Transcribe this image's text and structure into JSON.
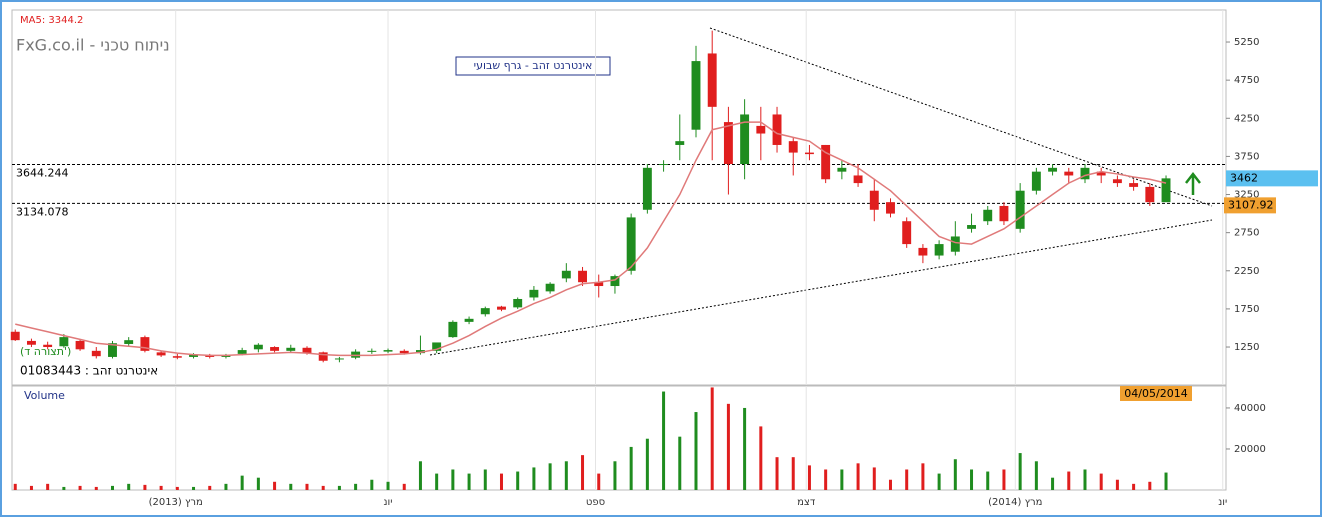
{
  "chart_data": {
    "type": "candlestick",
    "title": "FxG.co.il - ניתוח טכני",
    "subtitle": "אינטרנט זהב - גרף שבועי",
    "indicator_label": "MA5: 3344.2",
    "symbol_label": "01083443 : אינטרנט זהב",
    "pattern_label": "(תצורה ד')",
    "up_color": "#1f8c1f",
    "down_color": "#e01e1e",
    "ma_color": "#e07a7a",
    "open": [
      1450,
      1330,
      1280,
      1260,
      1330,
      1200,
      1120,
      1290,
      1380,
      1180,
      1130,
      1120,
      1140,
      1120,
      1160,
      1220,
      1250,
      1200,
      1240,
      1180,
      1090,
      1110,
      1190,
      1190,
      1200,
      1170,
      1200,
      1380,
      1580,
      1680,
      1780,
      1770,
      1900,
      1980,
      2150,
      2250,
      2100,
      2050,
      2250,
      3050,
      3650,
      3900,
      4100,
      5100,
      4200,
      3650,
      4150,
      4300,
      3950,
      3800,
      3900,
      3550,
      3500,
      3300,
      3150,
      2900,
      2550,
      2450,
      2500,
      2800,
      2900,
      3100,
      2800,
      3300,
      3550,
      3550,
      3450,
      3550,
      3450,
      3400,
      3350,
      3150
    ],
    "high": [
      1480,
      1360,
      1320,
      1420,
      1350,
      1250,
      1330,
      1380,
      1400,
      1200,
      1160,
      1170,
      1160,
      1160,
      1240,
      1300,
      1260,
      1280,
      1260,
      1190,
      1120,
      1220,
      1230,
      1230,
      1220,
      1400,
      1300,
      1600,
      1650,
      1780,
      1790,
      1900,
      2050,
      2100,
      2350,
      2300,
      2200,
      2200,
      3000,
      3650,
      3700,
      4300,
      5200,
      5400,
      4400,
      4500,
      4400,
      4400,
      4000,
      3900,
      3900,
      3700,
      3650,
      3450,
      3200,
      2950,
      2600,
      2650,
      2900,
      3000,
      3100,
      3150,
      3400,
      3600,
      3650,
      3600,
      3650,
      3600,
      3500,
      3450,
      3400,
      3500
    ],
    "low": [
      1330,
      1250,
      1220,
      1240,
      1200,
      1100,
      1100,
      1260,
      1180,
      1120,
      1090,
      1100,
      1100,
      1100,
      1140,
      1180,
      1180,
      1180,
      1150,
      1050,
      1050,
      1090,
      1160,
      1170,
      1150,
      1150,
      1170,
      1370,
      1550,
      1650,
      1720,
      1750,
      1860,
      1950,
      2100,
      2050,
      1900,
      1950,
      2200,
      3000,
      3550,
      3700,
      4000,
      3700,
      3250,
      3450,
      3700,
      3800,
      3500,
      3700,
      3400,
      3450,
      3350,
      2900,
      2950,
      2550,
      2350,
      2400,
      2450,
      2750,
      2850,
      2850,
      2750,
      3250,
      3500,
      3400,
      3400,
      3400,
      3350,
      3300,
      3100,
      3150
    ],
    "close": [
      1340,
      1280,
      1250,
      1380,
      1220,
      1130,
      1300,
      1340,
      1200,
      1140,
      1110,
      1150,
      1120,
      1140,
      1210,
      1280,
      1200,
      1240,
      1170,
      1070,
      1100,
      1190,
      1200,
      1210,
      1170,
      1210,
      1310,
      1580,
      1620,
      1760,
      1740,
      1880,
      2000,
      2080,
      2250,
      2100,
      2050,
      2180,
      2950,
      3600,
      3650,
      3950,
      5000,
      4400,
      3650,
      4300,
      4050,
      3900,
      3800,
      3780,
      3450,
      3600,
      3400,
      3050,
      3000,
      2600,
      2450,
      2600,
      2700,
      2850,
      3050,
      2900,
      3300,
      3550,
      3600,
      3500,
      3600,
      3500,
      3400,
      3350,
      3150,
      3462
    ],
    "ma": [
      1550,
      1500,
      1450,
      1400,
      1350,
      1300,
      1280,
      1260,
      1240,
      1200,
      1170,
      1150,
      1140,
      1140,
      1150,
      1160,
      1170,
      1180,
      1170,
      1150,
      1140,
      1140,
      1140,
      1150,
      1160,
      1180,
      1220,
      1300,
      1400,
      1520,
      1630,
      1720,
      1820,
      1900,
      2000,
      2080,
      2100,
      2130,
      2300,
      2550,
      2900,
      3250,
      3700,
      4100,
      4150,
      4200,
      4200,
      4050,
      4000,
      3950,
      3800,
      3700,
      3600,
      3450,
      3300,
      3100,
      2900,
      2700,
      2620,
      2600,
      2700,
      2800,
      2950,
      3100,
      3250,
      3400,
      3500,
      3550,
      3520,
      3480,
      3450,
      3400
    ],
    "ylim": [
      752,
      5670
    ],
    "yticks": [
      1250,
      1750,
      2250,
      2750,
      3250,
      3750,
      4250,
      4750,
      5250
    ],
    "levels": [
      3644.244,
      3134.078
    ],
    "last_price": 3462,
    "marker_price": 3107.92,
    "xlim": [
      -0.2,
      74.7
    ],
    "xticks": [
      {
        "value": 9.9,
        "label": "מרץ (2013)"
      },
      {
        "value": 23.0,
        "label": "יונ"
      },
      {
        "value": 35.8,
        "label": "ספט"
      },
      {
        "value": 48.8,
        "label": "דצמ"
      },
      {
        "value": 61.7,
        "label": "מרץ (2014)"
      },
      {
        "value": 74.5,
        "label": "יונ"
      }
    ],
    "date_label": "04/05/2014",
    "volume": {
      "title": "Volume",
      "values": [
        3000,
        2000,
        3000,
        1500,
        2000,
        1500,
        2000,
        3000,
        2500,
        2000,
        1500,
        1500,
        2000,
        3000,
        7000,
        6000,
        4000,
        3000,
        3000,
        2000,
        2000,
        3000,
        5000,
        4000,
        3000,
        14000,
        8000,
        10000,
        8000,
        10000,
        8000,
        9000,
        11000,
        13000,
        14000,
        17000,
        8000,
        14000,
        21000,
        25000,
        48000,
        26000,
        38000,
        50000,
        42000,
        40000,
        31000,
        16000,
        16000,
        12000,
        10000,
        10000,
        13000,
        11000,
        5000,
        10000,
        13000,
        8000,
        15000,
        10000,
        9000,
        10000,
        18000,
        14000,
        6000,
        9000,
        10000,
        8000,
        5000,
        3000,
        4000,
        8500
      ],
      "ylim": [
        0,
        50700
      ],
      "yticks": [
        20000,
        40000
      ]
    }
  }
}
